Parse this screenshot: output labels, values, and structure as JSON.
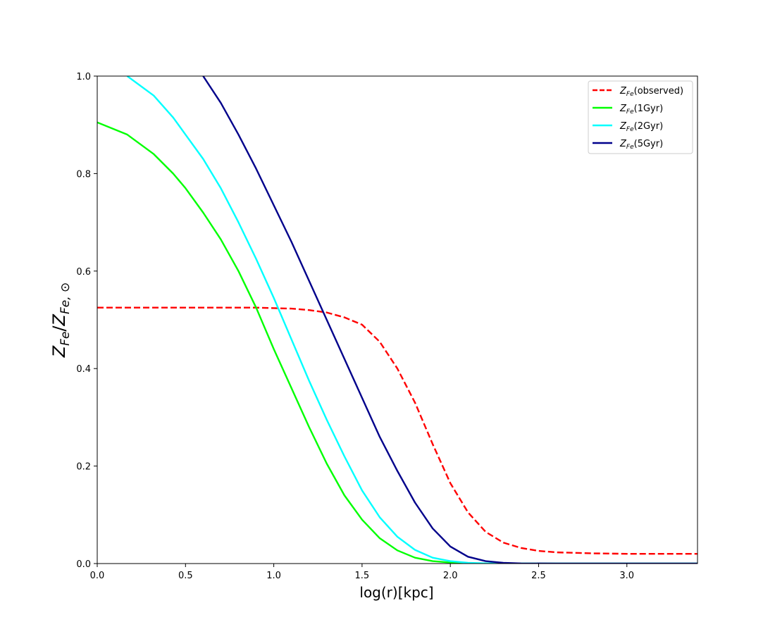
{
  "chart_data": {
    "type": "line",
    "xlabel": "log(r)[kpc]",
    "ylabel_parts": {
      "base": "Z",
      "sub": "Fe",
      "sep": "/",
      "sub2": "Fe, ⊙"
    },
    "xlim": [
      0,
      3.4
    ],
    "ylim": [
      0,
      1.0
    ],
    "xticks": [
      0.0,
      0.5,
      1.0,
      1.5,
      2.0,
      2.5,
      3.0
    ],
    "xtick_labels": [
      "0.0",
      "0.5",
      "1.0",
      "1.5",
      "2.0",
      "2.5",
      "3.0"
    ],
    "yticks": [
      0.0,
      0.2,
      0.4,
      0.6,
      0.8,
      1.0
    ],
    "ytick_labels": [
      "0.0",
      "0.2",
      "0.4",
      "0.6",
      "0.8",
      "1.0"
    ],
    "grid": false,
    "legend_position": "top-right",
    "series": [
      {
        "name": "Z_Fe(observed)",
        "legend_sub": "Fe",
        "legend_suffix": "(observed)",
        "color": "#ff0000",
        "dash": true,
        "points": [
          [
            0,
            0.525
          ],
          [
            0.5,
            0.525
          ],
          [
            0.9,
            0.525
          ],
          [
            1.1,
            0.523
          ],
          [
            1.2,
            0.52
          ],
          [
            1.3,
            0.515
          ],
          [
            1.4,
            0.505
          ],
          [
            1.5,
            0.49
          ],
          [
            1.6,
            0.455
          ],
          [
            1.7,
            0.4
          ],
          [
            1.8,
            0.33
          ],
          [
            1.9,
            0.245
          ],
          [
            2.0,
            0.165
          ],
          [
            2.1,
            0.105
          ],
          [
            2.2,
            0.065
          ],
          [
            2.3,
            0.043
          ],
          [
            2.4,
            0.032
          ],
          [
            2.5,
            0.026
          ],
          [
            2.6,
            0.023
          ],
          [
            2.8,
            0.021
          ],
          [
            3.0,
            0.02
          ],
          [
            3.4,
            0.02
          ]
        ]
      },
      {
        "name": "Z_Fe(1Gyr)",
        "legend_sub": "Fe",
        "legend_suffix": "(1Gyr)",
        "color": "#00ff00",
        "dash": false,
        "points": [
          [
            0,
            0.905
          ],
          [
            0.17,
            0.88
          ],
          [
            0.32,
            0.84
          ],
          [
            0.43,
            0.8
          ],
          [
            0.5,
            0.77
          ],
          [
            0.6,
            0.72
          ],
          [
            0.7,
            0.665
          ],
          [
            0.8,
            0.6
          ],
          [
            0.9,
            0.525
          ],
          [
            1.0,
            0.44
          ],
          [
            1.1,
            0.36
          ],
          [
            1.2,
            0.28
          ],
          [
            1.3,
            0.205
          ],
          [
            1.4,
            0.14
          ],
          [
            1.5,
            0.09
          ],
          [
            1.6,
            0.052
          ],
          [
            1.7,
            0.027
          ],
          [
            1.8,
            0.012
          ],
          [
            1.9,
            0.005
          ],
          [
            2.0,
            0.002
          ],
          [
            2.1,
            0.0005
          ],
          [
            2.3,
            0
          ],
          [
            3.4,
            0
          ]
        ]
      },
      {
        "name": "Z_Fe(2Gyr)",
        "legend_sub": "Fe",
        "legend_suffix": "(2Gyr)",
        "color": "#00ffff",
        "dash": false,
        "points": [
          [
            0.17,
            1.0
          ],
          [
            0.32,
            0.96
          ],
          [
            0.43,
            0.915
          ],
          [
            0.5,
            0.88
          ],
          [
            0.6,
            0.83
          ],
          [
            0.7,
            0.77
          ],
          [
            0.8,
            0.7
          ],
          [
            0.9,
            0.625
          ],
          [
            1.0,
            0.545
          ],
          [
            1.1,
            0.46
          ],
          [
            1.2,
            0.375
          ],
          [
            1.3,
            0.295
          ],
          [
            1.4,
            0.22
          ],
          [
            1.5,
            0.15
          ],
          [
            1.6,
            0.095
          ],
          [
            1.7,
            0.055
          ],
          [
            1.8,
            0.028
          ],
          [
            1.9,
            0.012
          ],
          [
            2.0,
            0.005
          ],
          [
            2.1,
            0.0015
          ],
          [
            2.2,
            0.0005
          ],
          [
            2.4,
            0
          ],
          [
            3.4,
            0
          ]
        ]
      },
      {
        "name": "Z_Fe(5Gyr)",
        "legend_sub": "Fe",
        "legend_suffix": "(5Gyr)",
        "color": "#00008b",
        "dash": false,
        "points": [
          [
            0.6,
            1.0
          ],
          [
            0.7,
            0.945
          ],
          [
            0.8,
            0.88
          ],
          [
            0.9,
            0.81
          ],
          [
            1.0,
            0.735
          ],
          [
            1.1,
            0.66
          ],
          [
            1.2,
            0.58
          ],
          [
            1.3,
            0.5
          ],
          [
            1.4,
            0.42
          ],
          [
            1.5,
            0.34
          ],
          [
            1.6,
            0.26
          ],
          [
            1.7,
            0.19
          ],
          [
            1.8,
            0.125
          ],
          [
            1.9,
            0.072
          ],
          [
            2.0,
            0.035
          ],
          [
            2.1,
            0.014
          ],
          [
            2.2,
            0.005
          ],
          [
            2.3,
            0.0015
          ],
          [
            2.4,
            0.0003
          ],
          [
            2.6,
            0
          ],
          [
            3.4,
            0
          ]
        ]
      }
    ]
  }
}
